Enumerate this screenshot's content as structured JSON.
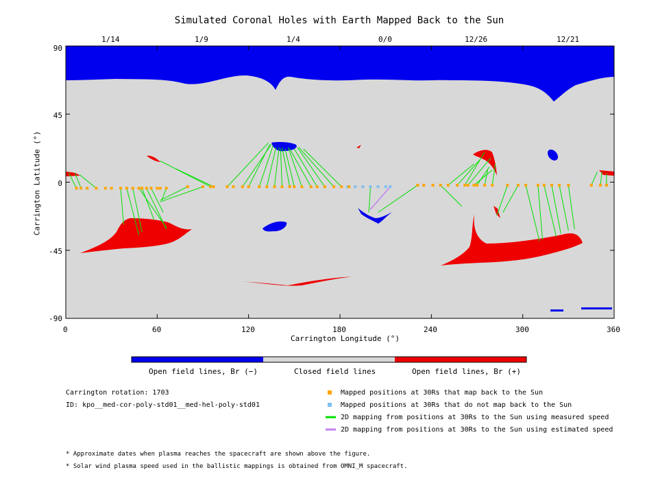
{
  "title": "Simulated Coronal Holes with Earth Mapped Back to the Sun",
  "top_dates": [
    "1/14",
    "1/9",
    "1/4",
    "0/0",
    "12/26",
    "12/21"
  ],
  "chart_data": {
    "type": "map",
    "xlabel": "Carrington Longitude (°)",
    "ylabel": "Carrington Latitude (°)",
    "xlim": [
      0,
      360
    ],
    "ylim": [
      -90,
      90
    ],
    "xticks": [
      0,
      60,
      120,
      180,
      240,
      300,
      360
    ],
    "yticks": [
      -90,
      -45,
      0,
      45,
      90
    ],
    "colorbar_labels": [
      "Open field lines, Br (−)",
      "Closed field lines",
      "Open field lines, Br (+)"
    ],
    "colors": {
      "open_negative": "#0000ee",
      "closed": "#d8d8d8",
      "open_positive": "#ee0000",
      "mapped_back": "#ffa500",
      "not_mapped": "#80c0f0",
      "measured_speed_line": "#00e000",
      "estimated_speed_line": "#c080f0"
    },
    "mapped_points": [
      [
        7,
        -4
      ],
      [
        10,
        -4
      ],
      [
        14,
        -4
      ],
      [
        20,
        -4
      ],
      [
        26,
        -4
      ],
      [
        30,
        -4
      ],
      [
        36,
        -4
      ],
      [
        40,
        -4
      ],
      [
        44,
        -4
      ],
      [
        48,
        -4
      ],
      [
        50,
        -4
      ],
      [
        53,
        -4
      ],
      [
        56,
        -4
      ],
      [
        60,
        -4
      ],
      [
        62,
        -4
      ],
      [
        66,
        -4
      ],
      [
        80,
        -3
      ],
      [
        90,
        -3
      ],
      [
        95,
        -3
      ],
      [
        97,
        -3
      ],
      [
        106,
        -3
      ],
      [
        110,
        -3
      ],
      [
        116,
        -3
      ],
      [
        120,
        -3
      ],
      [
        127,
        -3
      ],
      [
        132,
        -3
      ],
      [
        137,
        -3
      ],
      [
        142,
        -3
      ],
      [
        147,
        -3
      ],
      [
        150,
        -3
      ],
      [
        155,
        -3
      ],
      [
        161,
        -3
      ],
      [
        165,
        -3
      ],
      [
        170,
        -3
      ],
      [
        176,
        -3
      ],
      [
        181,
        -3
      ],
      [
        186,
        -3
      ],
      [
        231,
        -2
      ],
      [
        235,
        -2
      ],
      [
        241,
        -2
      ],
      [
        246,
        -2
      ],
      [
        251,
        -2
      ],
      [
        257,
        -2
      ],
      [
        262,
        -2
      ],
      [
        264,
        -2
      ],
      [
        268,
        -2
      ],
      [
        270,
        -2
      ],
      [
        275,
        -2
      ],
      [
        280,
        -2
      ],
      [
        290,
        -2
      ],
      [
        297,
        -2
      ],
      [
        302,
        -2
      ],
      [
        310,
        -2
      ],
      [
        314,
        -2
      ],
      [
        319,
        -2
      ],
      [
        324,
        -2
      ],
      [
        330,
        -2
      ],
      [
        345,
        -2
      ],
      [
        351,
        -2
      ],
      [
        355,
        -2
      ]
    ],
    "unmapped_points": [
      [
        185,
        -3
      ],
      [
        190,
        -3
      ],
      [
        195,
        -3
      ],
      [
        200,
        -3
      ],
      [
        205,
        -3
      ],
      [
        210,
        -3
      ],
      [
        213,
        -3
      ]
    ],
    "measured_speed_links": [
      [
        [
          7,
          -4
        ],
        [
          2,
          6
        ]
      ],
      [
        [
          10,
          -4
        ],
        [
          6,
          6
        ]
      ],
      [
        [
          20,
          -4
        ],
        [
          9,
          5
        ]
      ],
      [
        [
          40,
          -4
        ],
        [
          48,
          -35
        ]
      ],
      [
        [
          44,
          -4
        ],
        [
          50,
          -33
        ]
      ],
      [
        [
          48,
          -4
        ],
        [
          66,
          -30
        ]
      ],
      [
        [
          36,
          -4
        ],
        [
          38,
          -28
        ]
      ],
      [
        [
          50,
          -4
        ],
        [
          58,
          -25
        ]
      ],
      [
        [
          53,
          -4
        ],
        [
          66,
          -31
        ]
      ],
      [
        [
          56,
          -4
        ],
        [
          64,
          -20
        ]
      ],
      [
        [
          66,
          -4
        ],
        [
          63,
          -12
        ]
      ],
      [
        [
          80,
          -3
        ],
        [
          62,
          -12
        ]
      ],
      [
        [
          90,
          -3
        ],
        [
          62,
          -13
        ]
      ],
      [
        [
          95,
          -3
        ],
        [
          62,
          14
        ]
      ],
      [
        [
          97,
          -3
        ],
        [
          72,
          9
        ]
      ],
      [
        [
          106,
          -3
        ],
        [
          133,
          26
        ]
      ],
      [
        [
          116,
          -3
        ],
        [
          135,
          25
        ]
      ],
      [
        [
          120,
          -3
        ],
        [
          134,
          25
        ]
      ],
      [
        [
          127,
          -3
        ],
        [
          136,
          24
        ]
      ],
      [
        [
          132,
          -3
        ],
        [
          138,
          23
        ]
      ],
      [
        [
          137,
          -3
        ],
        [
          140,
          23
        ]
      ],
      [
        [
          142,
          -3
        ],
        [
          141,
          22
        ]
      ],
      [
        [
          147,
          -3
        ],
        [
          142,
          23
        ]
      ],
      [
        [
          150,
          -3
        ],
        [
          144,
          22
        ]
      ],
      [
        [
          155,
          -3
        ],
        [
          146,
          23
        ]
      ],
      [
        [
          161,
          -3
        ],
        [
          147,
          22
        ]
      ],
      [
        [
          165,
          -3
        ],
        [
          150,
          22
        ]
      ],
      [
        [
          170,
          -3
        ],
        [
          152,
          23
        ]
      ],
      [
        [
          176,
          -3
        ],
        [
          153,
          23
        ]
      ],
      [
        [
          181,
          -3
        ],
        [
          156,
          22
        ]
      ],
      [
        [
          200,
          -3
        ],
        [
          199,
          -20
        ]
      ],
      [
        [
          231,
          -2
        ],
        [
          205,
          -20
        ]
      ],
      [
        [
          246,
          -2
        ],
        [
          260,
          -16
        ]
      ],
      [
        [
          251,
          -2
        ],
        [
          268,
          12
        ]
      ],
      [
        [
          257,
          -2
        ],
        [
          272,
          15
        ]
      ],
      [
        [
          262,
          -2
        ],
        [
          275,
          20
        ]
      ],
      [
        [
          264,
          -2
        ],
        [
          279,
          16
        ]
      ],
      [
        [
          268,
          -2
        ],
        [
          280,
          8
        ]
      ],
      [
        [
          270,
          -2
        ],
        [
          278,
          10
        ]
      ],
      [
        [
          275,
          -2
        ],
        [
          277,
          8
        ]
      ],
      [
        [
          280,
          -2
        ],
        [
          282,
          12
        ]
      ],
      [
        [
          290,
          -2
        ],
        [
          283,
          -22
        ]
      ],
      [
        [
          297,
          -2
        ],
        [
          287,
          -20
        ]
      ],
      [
        [
          302,
          -2
        ],
        [
          311,
          -39
        ]
      ],
      [
        [
          310,
          -2
        ],
        [
          313,
          -38
        ]
      ],
      [
        [
          314,
          -2
        ],
        [
          322,
          -36
        ]
      ],
      [
        [
          319,
          -2
        ],
        [
          325,
          -34
        ]
      ],
      [
        [
          324,
          -2
        ],
        [
          330,
          -32
        ]
      ],
      [
        [
          330,
          -2
        ],
        [
          334,
          -31
        ]
      ],
      [
        [
          345,
          -2
        ],
        [
          349,
          7
        ]
      ],
      [
        [
          351,
          -2
        ],
        [
          352,
          7
        ]
      ],
      [
        [
          355,
          -2
        ],
        [
          355,
          6
        ]
      ]
    ],
    "estimated_speed_links": [
      [
        [
          213,
          -3
        ],
        [
          200,
          -18
        ]
      ]
    ]
  },
  "legend": {
    "rotation_label": "Carrington rotation: 1703",
    "id_label": "ID: kpo__med-cor-poly-std01__med-hel-poly-std01",
    "items": [
      "Mapped positions at 30Rs that map back to the Sun",
      "Mapped positions at 30Rs that do not map back to the Sun",
      "2D mapping from positions at 30Rs to the Sun using measured speed",
      "2D mapping from positions at 30Rs to the Sun using estimated speed"
    ]
  },
  "footnotes": [
    "* Approximate dates when plasma reaches the spacecraft are shown above the figure.",
    "* Solar wind plasma speed used in the ballistic mappings is obtained from OMNI_M spacecraft."
  ]
}
